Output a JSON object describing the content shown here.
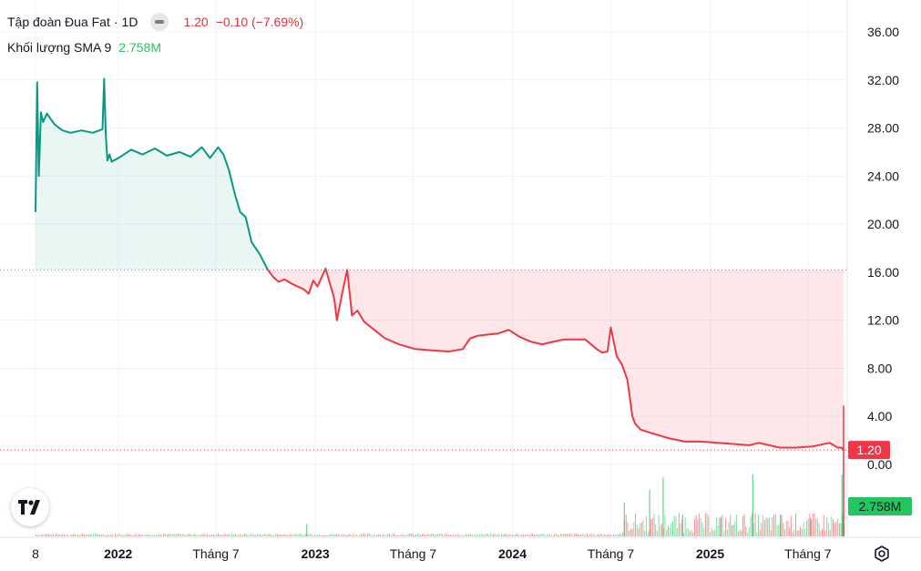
{
  "legend": {
    "symbol": "Tập đoàn Đua Fat",
    "separator": "·",
    "interval": "1D",
    "last": "1.20",
    "change": "−0.10 (−7.69%)",
    "volume_label": "Khối lượng SMA 9",
    "volume_value": "2.758M"
  },
  "colors": {
    "up": "#089981",
    "down": "#f23645",
    "volume": "#22c55e",
    "grid": "#f0f3fa"
  },
  "icons": {
    "logo": "tradingview-logo-icon",
    "settings": "gear-icon",
    "visibility": "eye-icon"
  },
  "chart_data": {
    "type": "area",
    "ylim": [
      -1.5,
      36.0
    ],
    "y_ticks": [
      "36.00",
      "32.00",
      "28.00",
      "24.00",
      "20.00",
      "16.00",
      "12.00",
      "8.00",
      "4.00",
      "0.00"
    ],
    "y_tick_values": [
      36,
      32,
      28,
      24,
      20,
      16,
      12,
      8,
      4,
      0
    ],
    "x_ticks": [
      "8",
      "2022",
      "Tháng 7",
      "2023",
      "Tháng 7",
      "2024",
      "Tháng 7",
      "2025",
      "Tháng 7"
    ],
    "x_tick_dates": [
      "2021-08-01",
      "2022-01-01",
      "2022-07-01",
      "2023-01-01",
      "2023-07-01",
      "2024-01-01",
      "2024-07-01",
      "2025-01-01",
      "2025-07-01"
    ],
    "x_tick_bold": [
      false,
      true,
      false,
      true,
      false,
      true,
      false,
      true,
      false
    ],
    "x_range": [
      "2021-08-01",
      "2025-09-05"
    ],
    "baseline": 16.2,
    "last_value": "1.20",
    "volume_last": "2.758M",
    "series": [
      {
        "x": [
          "2021-08-01",
          "2021-08-04",
          "2021-08-07",
          "2021-08-11",
          "2021-08-15",
          "2021-08-22",
          "2021-09-05",
          "2021-09-20",
          "2021-10-05",
          "2021-10-25",
          "2021-11-15",
          "2021-12-03",
          "2021-12-06",
          "2021-12-09",
          "2021-12-12",
          "2021-12-16",
          "2021-12-20",
          "2022-01-05",
          "2022-01-25",
          "2022-02-15",
          "2022-03-10",
          "2022-04-01",
          "2022-04-25",
          "2022-05-15",
          "2022-06-05",
          "2022-06-20",
          "2022-07-05",
          "2022-07-15",
          "2022-07-25",
          "2022-08-05",
          "2022-08-15",
          "2022-08-25",
          "2022-09-05",
          "2022-09-20",
          "2022-10-05",
          "2022-10-15",
          "2022-10-25",
          "2022-11-05",
          "2022-11-20",
          "2022-12-10",
          "2022-12-20",
          "2022-12-28",
          "2023-01-05",
          "2023-01-20",
          "2023-02-05",
          "2023-02-10",
          "2023-02-20",
          "2023-03-01",
          "2023-03-10",
          "2023-03-20",
          "2023-04-01",
          "2023-04-20",
          "2023-05-10",
          "2023-06-05",
          "2023-07-05",
          "2023-08-05",
          "2023-09-05",
          "2023-10-01",
          "2023-10-15",
          "2023-10-28",
          "2023-11-15",
          "2023-12-05",
          "2023-12-25",
          "2024-01-15",
          "2024-02-05",
          "2024-02-25",
          "2024-03-15",
          "2024-04-05",
          "2024-04-25",
          "2024-05-15",
          "2024-06-05",
          "2024-06-15",
          "2024-06-25",
          "2024-07-01",
          "2024-07-12",
          "2024-07-22",
          "2024-08-01",
          "2024-08-10",
          "2024-08-15",
          "2024-08-25",
          "2024-09-15",
          "2024-10-15",
          "2024-11-15",
          "2024-12-15",
          "2025-01-15",
          "2025-02-15",
          "2025-03-15",
          "2025-04-01",
          "2025-04-20",
          "2025-05-10",
          "2025-06-10",
          "2025-07-10",
          "2025-08-10",
          "2025-08-25",
          "2025-09-01",
          "2025-09-05"
        ],
        "values": [
          21.0,
          31.8,
          24.0,
          29.3,
          28.5,
          29.2,
          28.3,
          27.8,
          27.6,
          27.8,
          27.6,
          27.9,
          32.1,
          27.5,
          25.3,
          25.8,
          25.2,
          25.6,
          26.2,
          25.8,
          26.3,
          25.7,
          26.0,
          25.6,
          26.4,
          25.5,
          26.4,
          25.8,
          24.5,
          22.5,
          21.0,
          20.6,
          18.5,
          17.5,
          16.2,
          15.6,
          15.2,
          15.4,
          15.0,
          14.6,
          14.2,
          15.3,
          14.8,
          16.3,
          13.8,
          12.0,
          14.3,
          16.2,
          12.4,
          12.8,
          11.9,
          11.2,
          10.5,
          10.0,
          9.6,
          9.5,
          9.4,
          9.6,
          10.5,
          10.7,
          10.8,
          10.9,
          11.2,
          10.6,
          10.2,
          10.0,
          10.2,
          10.4,
          10.4,
          10.4,
          9.6,
          9.3,
          9.4,
          11.4,
          9.0,
          8.3,
          7.0,
          4.0,
          3.4,
          2.9,
          2.6,
          2.2,
          1.9,
          1.9,
          1.8,
          1.7,
          1.6,
          1.8,
          1.6,
          1.4,
          1.4,
          1.5,
          1.8,
          1.4,
          1.4,
          1.2
        ]
      }
    ],
    "volume_spikes": [
      {
        "x": "2022-12-15",
        "h": 0.2
      },
      {
        "x": "2024-07-25",
        "h": 0.55
      },
      {
        "x": "2024-09-10",
        "h": 0.75
      },
      {
        "x": "2024-10-05",
        "h": 0.95
      },
      {
        "x": "2024-11-10",
        "h": 0.35
      },
      {
        "x": "2025-01-20",
        "h": 0.3
      },
      {
        "x": "2025-03-20",
        "h": 1.0
      },
      {
        "x": "2025-05-10",
        "h": 0.35
      },
      {
        "x": "2025-07-05",
        "h": 0.3
      },
      {
        "x": "2025-09-01",
        "h": 1.0
      }
    ]
  }
}
